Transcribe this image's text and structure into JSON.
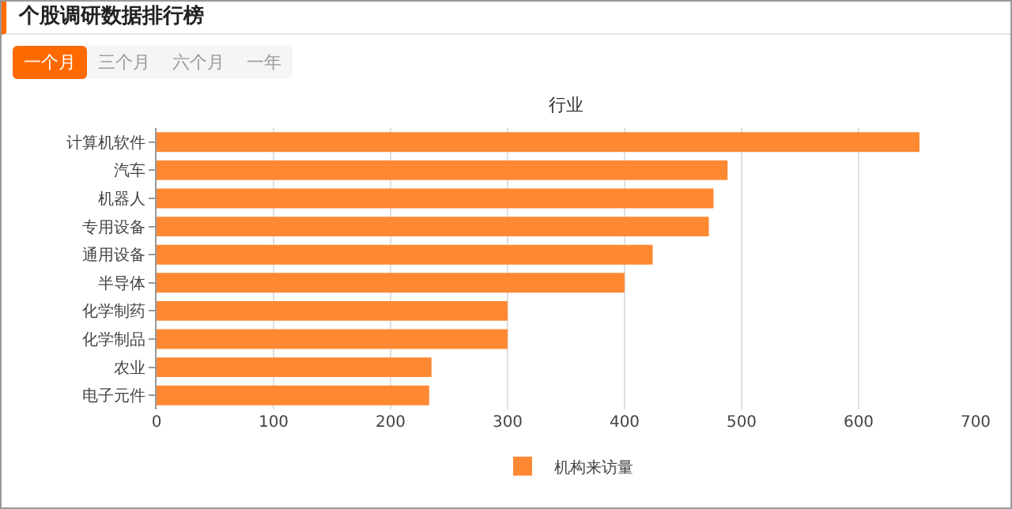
{
  "chart_data": {
    "type": "bar",
    "orientation": "horizontal",
    "title": "个股调研数据排行榜",
    "annotations": [
      "一个月",
      "三个月",
      "六个月",
      "一年"
    ],
    "ylabel": "行业",
    "categories": [
      "计算机软件",
      "汽车",
      "机器人",
      "专用设备",
      "通用设备",
      "半导体",
      "化学制药",
      "化学制品",
      "农业",
      "电子元件"
    ],
    "series": [
      {
        "name": "机构来访量",
        "color": "#ff8833",
        "values": [
          652,
          488,
          476,
          472,
          424,
          400,
          300,
          300,
          235,
          233
        ]
      }
    ],
    "xlim": [
      0,
      700
    ],
    "xticks": [
      0,
      100,
      200,
      300,
      400,
      500,
      600,
      700
    ],
    "grid": "x",
    "legend": "bottom"
  }
}
